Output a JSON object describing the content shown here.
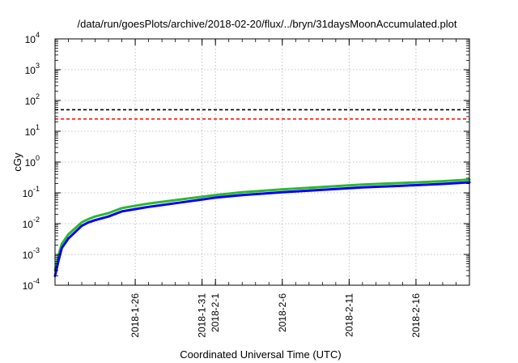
{
  "chart_data": {
    "type": "line",
    "title": "/data/run/goesPlots/archive/2018-02-20/flux/../bryn/31daysMoonAccumulated.plot",
    "xlabel": "Coordinated Universal Time (UTC)",
    "ylabel": "cGy",
    "yscale": "log",
    "ylim": [
      0.0001,
      10000
    ],
    "xlim": [
      "2018-01-20",
      "2018-02-20"
    ],
    "grid": true,
    "y_ticks": [
      {
        "base": "10",
        "exp": "-4"
      },
      {
        "base": "10",
        "exp": "-3"
      },
      {
        "base": "10",
        "exp": "-2"
      },
      {
        "base": "10",
        "exp": "-1"
      },
      {
        "base": "10",
        "exp": "0"
      },
      {
        "base": "10",
        "exp": "1"
      },
      {
        "base": "10",
        "exp": "2"
      },
      {
        "base": "10",
        "exp": "3"
      },
      {
        "base": "10",
        "exp": "4"
      }
    ],
    "x_ticks": [
      {
        "date": "2018-01-26",
        "label": "2018-1-26"
      },
      {
        "date": "2018-01-31",
        "label": "2018-1-31"
      },
      {
        "date": "2018-02-01",
        "label": "2018-2-1"
      },
      {
        "date": "2018-02-06",
        "label": "2018-2-6"
      },
      {
        "date": "2018-02-11",
        "label": "2018-2-11"
      },
      {
        "date": "2018-02-16",
        "label": "2018-2-16"
      }
    ],
    "reference_lines": [
      {
        "y": 50,
        "color": "#000000",
        "dash": "dashed"
      },
      {
        "y": 25,
        "color": "#ff0000",
        "dash": "dashed"
      }
    ],
    "series": [
      {
        "color": "#2db82d",
        "x": [
          "2018-01-20",
          "2018-01-20T06:00",
          "2018-01-20T12:00",
          "2018-01-21",
          "2018-01-22",
          "2018-01-22T12:00",
          "2018-01-23",
          "2018-01-24",
          "2018-01-25",
          "2018-01-27",
          "2018-01-29",
          "2018-02-01",
          "2018-02-03",
          "2018-02-06",
          "2018-02-09",
          "2018-02-12",
          "2018-02-15",
          "2018-02-18",
          "2018-02-20"
        ],
        "values": [
          0.0003,
          0.0009,
          0.0022,
          0.0045,
          0.011,
          0.014,
          0.017,
          0.022,
          0.032,
          0.045,
          0.058,
          0.085,
          0.105,
          0.13,
          0.155,
          0.185,
          0.21,
          0.24,
          0.27
        ]
      },
      {
        "color": "#0000ff",
        "x": [
          "2018-01-20",
          "2018-01-20T06:00",
          "2018-01-20T12:00",
          "2018-01-21",
          "2018-01-22",
          "2018-01-22T12:00",
          "2018-01-23",
          "2018-01-24",
          "2018-01-25",
          "2018-01-27",
          "2018-01-29",
          "2018-02-01",
          "2018-02-03",
          "2018-02-06",
          "2018-02-09",
          "2018-02-12",
          "2018-02-15",
          "2018-02-18",
          "2018-02-20"
        ],
        "values": [
          0.0002,
          0.0006,
          0.0016,
          0.0033,
          0.0085,
          0.011,
          0.013,
          0.017,
          0.025,
          0.035,
          0.046,
          0.07,
          0.085,
          0.105,
          0.125,
          0.15,
          0.17,
          0.195,
          0.22
        ]
      }
    ]
  }
}
